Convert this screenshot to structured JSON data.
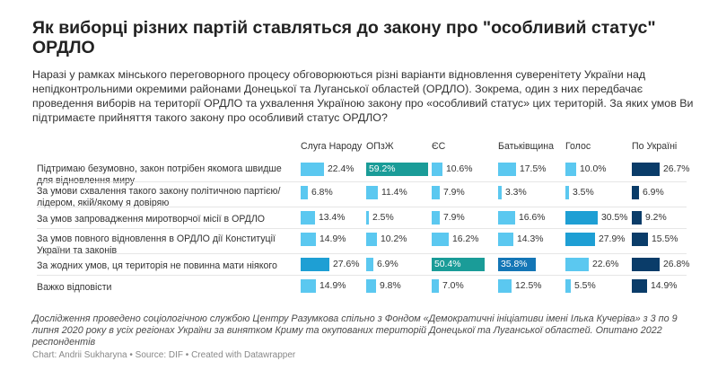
{
  "header": {
    "title": "Як виборці різних партій ставляться до закону про \"особливий статус\" ОРДЛО",
    "intro": "Наразі у рамках мінського переговорного процесу обговорюються різні варіанти відновлення суверенітету України над непідконтрольними окремими районами Донецької та Луганської областей (ОРДЛО). Зокрема, один з них передбачає проведення виборів на території ОРДЛО та ухвалення Україною закону про «особливий статус» цих територій. За яких умов Ви підтримаєте прийняття такого закону про особливий статус ОРДЛО?"
  },
  "chart_data": {
    "type": "table",
    "columns": [
      "Слуга Народу",
      "ОПзЖ",
      "ЄС",
      "Батьківщина",
      "Голос",
      "По Україні"
    ],
    "rows": [
      {
        "label": "Підтримаю безумовно, закон потрібен якомога швидше для відновлення миру",
        "values": [
          22.4,
          59.2,
          10.6,
          17.5,
          10.0,
          26.7
        ],
        "display": [
          "22.4%",
          "59.2%",
          "10.6%",
          "17.5%",
          "10.0%",
          "26.7%"
        ]
      },
      {
        "label": "За умови схвалення такого закону політичною партією/лідером, якій/якому я довіряю",
        "values": [
          6.8,
          11.4,
          7.9,
          3.3,
          3.5,
          6.9
        ],
        "display": [
          "6.8%",
          "11.4%",
          "7.9%",
          "3.3%",
          "3.5%",
          "6.9%"
        ]
      },
      {
        "label": "За умов запровадження миротворчої місії в ОРДЛО",
        "values": [
          13.4,
          2.5,
          7.9,
          16.6,
          30.5,
          9.2
        ],
        "display": [
          "13.4%",
          "2.5%",
          "7.9%",
          "16.6%",
          "30.5%",
          "9.2%"
        ]
      },
      {
        "label": "За умов повного відновлення в ОРДЛО дії Конституції України та законів",
        "values": [
          14.9,
          10.2,
          16.2,
          14.3,
          27.9,
          15.5
        ],
        "display": [
          "14.9%",
          "10.2%",
          "16.2%",
          "14.3%",
          "27.9%",
          "15.5%"
        ]
      },
      {
        "label": "За жодних умов, ця територія не повинна мати ніякого",
        "values": [
          27.6,
          6.9,
          50.4,
          35.8,
          22.6,
          26.8
        ],
        "display": [
          "27.6%",
          "6.9%",
          "50.4%",
          "35.8%",
          "22.6%",
          "26.8%"
        ]
      },
      {
        "label": "Важко відповісти",
        "values": [
          14.9,
          9.8,
          7.0,
          12.5,
          5.5,
          14.9
        ],
        "display": [
          "14.9%",
          "9.8%",
          "7.0%",
          "12.5%",
          "5.5%",
          "14.9%"
        ]
      }
    ],
    "colors": {
      "low": "#5bc8f0",
      "mid_low": "#1e9fd4",
      "mid": "#1476b6",
      "high": "#1a9c98",
      "very_high": "#0a3c69",
      "label_dark": "#333333",
      "label_light": "#ffffff"
    }
  },
  "footer": {
    "note": "Дослідження проведено соціологічною службою Центру Разумкова спільно з Фондом «Демократичні ініціативи імені Ілька Кучеріва» з 3 по 9 липня 2020 року в усіх регіонах України за винятком Криму та окупованих територій Донецької та Луганської областей. Опитано 2022 респондентів",
    "credit": "Chart: Andrii Sukharyna • Source: DIF • Created with Datawrapper"
  }
}
